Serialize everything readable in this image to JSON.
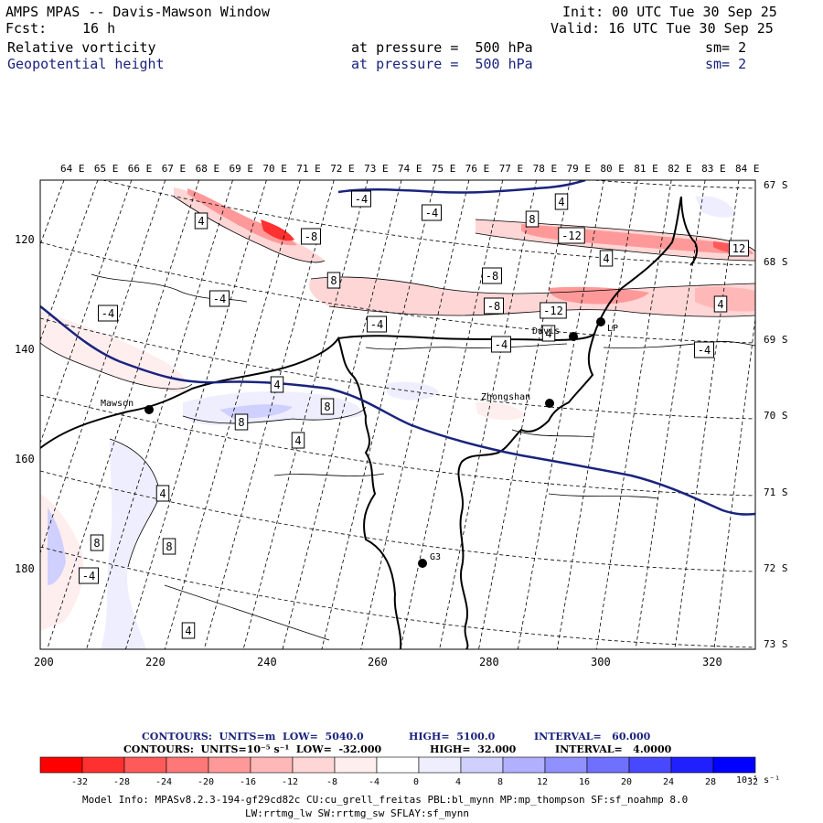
{
  "header": {
    "title": "AMPS MPAS -- Davis-Mawson Window",
    "init": "Init: 00 UTC Tue 30 Sep 25",
    "fcst_label": "Fcst:",
    "fcst_value": "16 h",
    "valid": "Valid: 16 UTC Tue 30 Sep 25",
    "fields": [
      {
        "name": "Relative vorticity",
        "level": "at pressure =  500 hPa",
        "sm": "sm= 2"
      },
      {
        "name": "Geopotential height",
        "level": "at pressure =  500 hPa",
        "sm": "sm= 2"
      }
    ]
  },
  "map": {
    "lon_labels": [
      "64 E",
      "65 E",
      "66 E",
      "67 E",
      "68 E",
      "69 E",
      "70 E",
      "71 E",
      "72 E",
      "73 E",
      "74 E",
      "75 E",
      "76 E",
      "77 E",
      "78 E",
      "79 E",
      "80 E",
      "81 E",
      "82 E",
      "83 E",
      "84 E"
    ],
    "lat_labels": [
      "67 S",
      "68 S",
      "69 S",
      "70 S",
      "71 S",
      "72 S",
      "73 S"
    ],
    "x_ticks": [
      "200",
      "220",
      "240",
      "260",
      "280",
      "300",
      "320"
    ],
    "y_ticks": [
      "120",
      "140",
      "160",
      "180"
    ],
    "stations": [
      {
        "name": "Mawson"
      },
      {
        "name": "Davis"
      },
      {
        "name": "Zhongshan"
      },
      {
        "name": "G3"
      },
      {
        "name": "LP"
      }
    ],
    "contour_labels": [
      "-4",
      "4",
      "-8",
      "8",
      "-12",
      "12",
      "-4",
      "-8",
      "-12",
      "8",
      "4",
      "-4",
      "-8",
      "-4",
      "-4",
      "4",
      "4",
      "8",
      "8",
      "4",
      "4",
      "8",
      "8",
      "4",
      "4",
      "-4",
      "-4",
      "-4",
      "4"
    ]
  },
  "legend": {
    "contours_height": {
      "label": "CONTOURS:  UNITS=m  LOW=  5040.0",
      "high": "HIGH=  5100.0",
      "interval": "INTERVAL=   60.000"
    },
    "contours_vort": {
      "label": "CONTOURS:  UNITS=10⁻⁵ s⁻¹  LOW=  -32.000",
      "high": "HIGH=  32.000",
      "interval": "INTERVAL=   4.0000"
    },
    "colorbar_ticks": [
      "-32",
      "-28",
      "-24",
      "-20",
      "-16",
      "-12",
      "-8",
      "-4",
      "0",
      "4",
      "8",
      "12",
      "16",
      "20",
      "24",
      "28",
      "32"
    ],
    "colorbar_unit": "10⁻⁵ s⁻¹",
    "colors": [
      "#ff0000",
      "#ff3030",
      "#ff5a5a",
      "#ff7878",
      "#ff9999",
      "#ffb8b8",
      "#ffd6d6",
      "#ffeeee",
      "#ffffff",
      "#eeeeff",
      "#d0d0ff",
      "#b0b0ff",
      "#9090ff",
      "#7070ff",
      "#4848ff",
      "#2020ff",
      "#0000ff"
    ]
  },
  "footer": {
    "line1": "Model Info: MPASv8.2.3-194-gf29cd82c CU:cu_grell_freitas PBL:bl_mynn MP:mp_thompson SF:sf_noahmp 8.0",
    "line2": "LW:rrtmg_lw SW:rrtmg_sw SFLAY:sf_mynn"
  }
}
